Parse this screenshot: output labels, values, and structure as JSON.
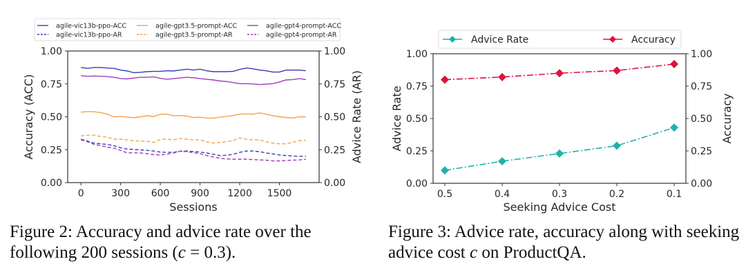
{
  "chart_data": [
    {
      "type": "line",
      "title": "",
      "xlabel": "Sessions",
      "ylabel": "Accuracy (ACC)",
      "ylabel_right": "Advice Rate (AR)",
      "xlim": [
        -100,
        1800
      ],
      "ylim": [
        0,
        1
      ],
      "ylim_right": [
        0,
        1
      ],
      "xticks": [
        0,
        300,
        600,
        900,
        1200,
        1500
      ],
      "xtick_labels": [
        "0",
        "300",
        "600",
        "900",
        "1200",
        "1500"
      ],
      "yticks": [
        0,
        0.25,
        0.5,
        0.75,
        1.0
      ],
      "ytick_labels": [
        "0.00",
        "0.25",
        "0.50",
        "0.75",
        "1.00"
      ],
      "legend_position": "top",
      "grid": false,
      "x": [
        0,
        50,
        100,
        150,
        200,
        250,
        300,
        350,
        400,
        450,
        500,
        550,
        600,
        650,
        700,
        750,
        800,
        850,
        900,
        950,
        1000,
        1050,
        1100,
        1150,
        1200,
        1250,
        1300,
        1350,
        1400,
        1450,
        1500,
        1550,
        1600,
        1650,
        1700
      ],
      "series": [
        {
          "name": "agile-vic13b-ppo-ACC",
          "axis": "left",
          "style": "solid",
          "color": "#3a3ab8",
          "values": [
            0.875,
            0.868,
            0.875,
            0.875,
            0.87,
            0.868,
            0.855,
            0.848,
            0.835,
            0.838,
            0.843,
            0.845,
            0.845,
            0.85,
            0.848,
            0.855,
            0.862,
            0.855,
            0.862,
            0.85,
            0.843,
            0.843,
            0.843,
            0.845,
            0.86,
            0.87,
            0.865,
            0.855,
            0.85,
            0.84,
            0.84,
            0.855,
            0.855,
            0.855,
            0.85
          ]
        },
        {
          "name": "agile-vic13b-ppo-AR",
          "axis": "right",
          "style": "dashed",
          "color": "#3a3ab8",
          "values": [
            0.33,
            0.315,
            0.3,
            0.295,
            0.29,
            0.28,
            0.265,
            0.255,
            0.252,
            0.248,
            0.245,
            0.24,
            0.232,
            0.23,
            0.23,
            0.238,
            0.24,
            0.236,
            0.232,
            0.225,
            0.215,
            0.205,
            0.208,
            0.215,
            0.23,
            0.24,
            0.24,
            0.235,
            0.225,
            0.218,
            0.21,
            0.205,
            0.202,
            0.2,
            0.2
          ]
        },
        {
          "name": "agile-gpt3.5-prompt-ACC",
          "axis": "left",
          "style": "solid",
          "color": "#f5a04a",
          "values": [
            0.535,
            0.54,
            0.538,
            0.532,
            0.52,
            0.5,
            0.502,
            0.498,
            0.493,
            0.5,
            0.508,
            0.502,
            0.52,
            0.52,
            0.508,
            0.51,
            0.505,
            0.495,
            0.498,
            0.49,
            0.49,
            0.498,
            0.502,
            0.51,
            0.52,
            0.522,
            0.52,
            0.53,
            0.52,
            0.508,
            0.5,
            0.495,
            0.49,
            0.5,
            0.5
          ]
        },
        {
          "name": "agile-gpt3.5-prompt-AR",
          "axis": "right",
          "style": "dashed",
          "color": "#f5a04a",
          "values": [
            0.355,
            0.36,
            0.36,
            0.35,
            0.345,
            0.33,
            0.33,
            0.325,
            0.318,
            0.315,
            0.315,
            0.305,
            0.328,
            0.33,
            0.325,
            0.335,
            0.33,
            0.325,
            0.325,
            0.31,
            0.3,
            0.305,
            0.31,
            0.32,
            0.34,
            0.33,
            0.325,
            0.325,
            0.31,
            0.3,
            0.295,
            0.295,
            0.305,
            0.32,
            0.322
          ]
        },
        {
          "name": "agile-gpt4-prompt-ACC",
          "axis": "left",
          "style": "solid",
          "color": "#a03cb4",
          "values": [
            0.812,
            0.808,
            0.81,
            0.808,
            0.805,
            0.8,
            0.79,
            0.788,
            0.795,
            0.8,
            0.8,
            0.803,
            0.792,
            0.785,
            0.79,
            0.795,
            0.8,
            0.797,
            0.79,
            0.785,
            0.78,
            0.772,
            0.768,
            0.76,
            0.752,
            0.752,
            0.75,
            0.745,
            0.748,
            0.752,
            0.765,
            0.78,
            0.782,
            0.79,
            0.782
          ]
        },
        {
          "name": "agile-gpt4-prompt-AR",
          "axis": "right",
          "style": "dashed",
          "color": "#a03cb4",
          "values": [
            0.325,
            0.31,
            0.29,
            0.28,
            0.27,
            0.262,
            0.245,
            0.225,
            0.228,
            0.225,
            0.22,
            0.212,
            0.21,
            0.215,
            0.225,
            0.238,
            0.235,
            0.228,
            0.22,
            0.205,
            0.195,
            0.185,
            0.18,
            0.178,
            0.178,
            0.178,
            0.175,
            0.172,
            0.17,
            0.165,
            0.165,
            0.168,
            0.17,
            0.172,
            0.178
          ]
        }
      ]
    },
    {
      "type": "line",
      "title": "",
      "xlabel": "Seeking Advice Cost",
      "ylabel": "Advice Rate",
      "ylabel_right": "Accuracy",
      "categories": [
        "0.5",
        "0.4",
        "0.3",
        "0.2",
        "0.1"
      ],
      "ylim": [
        0,
        1
      ],
      "ylim_right": [
        0,
        1
      ],
      "yticks": [
        0,
        0.25,
        0.5,
        0.75,
        1.0
      ],
      "ytick_labels": [
        "0.00",
        "0.25",
        "0.50",
        "0.75",
        "1.00"
      ],
      "legend_position": "top",
      "grid": false,
      "series": [
        {
          "name": "Advice Rate",
          "axis": "left",
          "style": "dashdot",
          "marker": "diamond",
          "color": "#20b2aa",
          "values": [
            0.1,
            0.17,
            0.23,
            0.29,
            0.43
          ]
        },
        {
          "name": "Accuracy",
          "axis": "right",
          "style": "dashdot",
          "marker": "diamond",
          "color": "#dc143c",
          "values": [
            0.8,
            0.82,
            0.85,
            0.87,
            0.92
          ]
        }
      ]
    }
  ],
  "captions": {
    "fig2_part1": "Figure 2: Accuracy and advice rate over the following 200 sessions (",
    "fig2_var": "c",
    "fig2_part2": " = 0.3).",
    "fig3_part1": "Figure 3:  Advice rate, accuracy along with seeking advice cost ",
    "fig3_var": "c",
    "fig3_part2": " on ProductQA."
  }
}
